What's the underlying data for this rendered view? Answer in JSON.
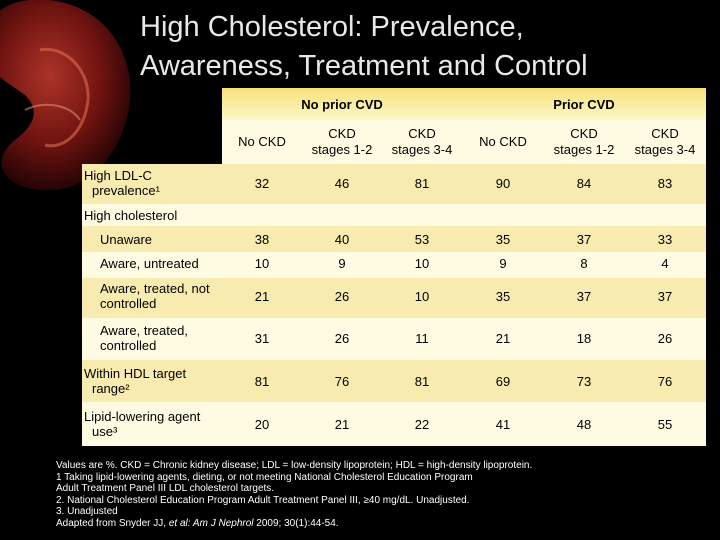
{
  "title": {
    "line1": "High Cholesterol: Prevalence,",
    "line2": "Awareness, Treatment and Control"
  },
  "table": {
    "groups": [
      "No prior CVD",
      "Prior CVD"
    ],
    "columns": [
      {
        "line1": "No CKD",
        "line2": ""
      },
      {
        "line1": "CKD",
        "line2": "stages 1-2"
      },
      {
        "line1": "CKD",
        "line2": "stages 3-4"
      },
      {
        "line1": "No CKD",
        "line2": ""
      },
      {
        "line1": "CKD",
        "line2": "stages 1-2"
      },
      {
        "line1": "CKD",
        "line2": "stages 3-4"
      }
    ],
    "rows": [
      {
        "label1": "High LDL-C",
        "label2": "prevalence¹",
        "values": [
          "32",
          "46",
          "81",
          "90",
          "84",
          "83"
        ]
      },
      {
        "label1": "High cholesterol",
        "label2": "",
        "values": []
      },
      {
        "label1": "Unaware",
        "label2": "",
        "values": [
          "38",
          "40",
          "53",
          "35",
          "37",
          "33"
        ]
      },
      {
        "label1": "Aware, untreated",
        "label2": "",
        "values": [
          "10",
          "9",
          "10",
          "9",
          "8",
          "4"
        ]
      },
      {
        "label1": "Aware, treated, not",
        "label2": "controlled",
        "values": [
          "21",
          "26",
          "10",
          "35",
          "37",
          "37"
        ]
      },
      {
        "label1": "Aware, treated,",
        "label2": "controlled",
        "values": [
          "31",
          "26",
          "11",
          "21",
          "18",
          "26"
        ]
      },
      {
        "label1": "Within HDL target",
        "label2": "range²",
        "values": [
          "81",
          "76",
          "81",
          "69",
          "73",
          "76"
        ]
      },
      {
        "label1": "Lipid-lowering agent",
        "label2": "use³",
        "values": [
          "20",
          "21",
          "22",
          "41",
          "48",
          "55"
        ]
      }
    ]
  },
  "footnotes": [
    "Values are  %. CKD = Chronic kidney disease; LDL = low-density lipoprotein; HDL = high-density lipoprotein.",
    "1  Taking lipid-lowering agents, dieting, or not meeting National Cholesterol Education Program",
    "Adult Treatment Panel III LDL cholesterol targets.",
    "2. National Cholesterol Education Program Adult Treatment Panel III, ≥40 mg/dL. Unadjusted.",
    "3. Unadjusted"
  ],
  "citation": {
    "prefix": "Adapted from Snyder JJ, ",
    "italic": "et al: Am J Nephrol",
    "suffix": " 2009; 30(1):44-54."
  }
}
